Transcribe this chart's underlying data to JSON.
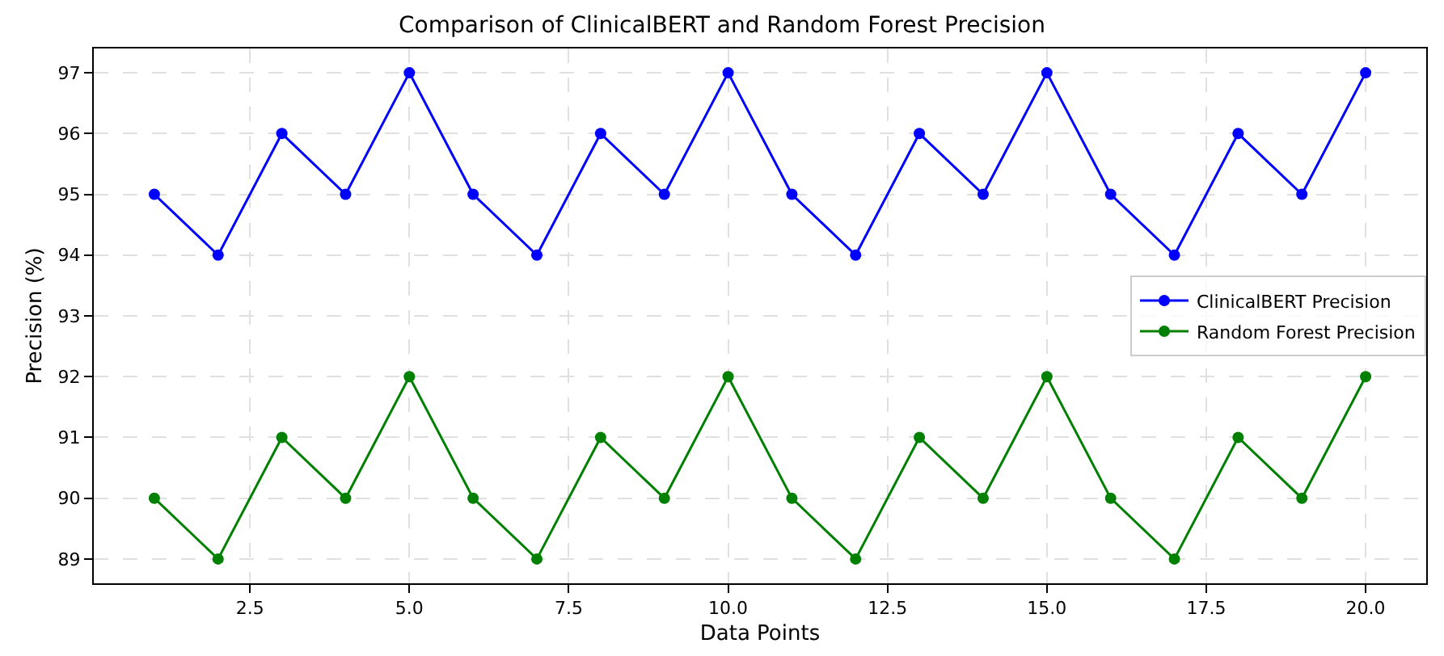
{
  "chart_data": {
    "type": "line",
    "title": "Comparison of ClinicalBERT and Random Forest Precision",
    "xlabel": "Data Points",
    "ylabel": "Precision (%)",
    "x": [
      1,
      2,
      3,
      4,
      5,
      6,
      7,
      8,
      9,
      10,
      11,
      12,
      13,
      14,
      15,
      16,
      17,
      18,
      19,
      20
    ],
    "series": [
      {
        "name": "ClinicalBERT Precision",
        "color": "#0000ff",
        "values": [
          95,
          94,
          96,
          95,
          97,
          95,
          94,
          96,
          95,
          97,
          95,
          94,
          96,
          95,
          97,
          95,
          94,
          96,
          95,
          97
        ]
      },
      {
        "name": "Random Forest Precision",
        "color": "#008000",
        "values": [
          90,
          89,
          91,
          90,
          92,
          90,
          89,
          91,
          90,
          92,
          90,
          89,
          91,
          90,
          92,
          90,
          89,
          91,
          90,
          92
        ]
      }
    ],
    "xlim": [
      0.05,
      20.95
    ],
    "ylim": [
      88.6,
      97.4
    ],
    "xticks": [
      {
        "value": 2.5,
        "label": "2.5"
      },
      {
        "value": 5,
        "label": "5.0"
      },
      {
        "value": 7.5,
        "label": "7.5"
      },
      {
        "value": 10,
        "label": "10.0"
      },
      {
        "value": 12.5,
        "label": "12.5"
      },
      {
        "value": 15,
        "label": "15.0"
      },
      {
        "value": 17.5,
        "label": "17.5"
      },
      {
        "value": 20,
        "label": "20.0"
      }
    ],
    "yticks": [
      89,
      90,
      91,
      92,
      93,
      94,
      95,
      96,
      97
    ],
    "grid": true,
    "legend": "right",
    "marker": "circle",
    "line_style": "solid"
  }
}
